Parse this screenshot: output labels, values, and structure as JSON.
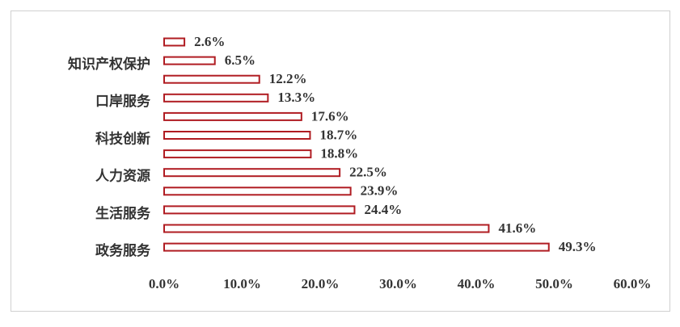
{
  "chart_data": {
    "type": "barh",
    "categories": [
      null,
      "知识产权保护",
      null,
      "口岸服务",
      null,
      "科技创新",
      null,
      "人力资源",
      null,
      "生活服务",
      null,
      "政务服务"
    ],
    "values": [
      2.6,
      6.5,
      12.2,
      13.3,
      17.6,
      18.7,
      18.8,
      22.5,
      23.9,
      24.4,
      41.6,
      49.3
    ],
    "value_labels": [
      "2.6%",
      "6.5%",
      "12.2%",
      "13.3%",
      "17.6%",
      "18.7%",
      "18.8%",
      "22.5%",
      "23.9%",
      "24.4%",
      "41.6%",
      "49.3%"
    ],
    "color": "#b01c22",
    "xlim": [
      0,
      60
    ],
    "xticks": [
      {
        "value": 0,
        "label": "0.0%"
      },
      {
        "value": 10,
        "label": "10.0%"
      },
      {
        "value": 20,
        "label": "20.0%"
      },
      {
        "value": 30,
        "label": "30.0%"
      },
      {
        "value": 40,
        "label": "40.0%"
      },
      {
        "value": 50,
        "label": "50.0%"
      },
      {
        "value": 60,
        "label": "60.0%"
      }
    ]
  }
}
